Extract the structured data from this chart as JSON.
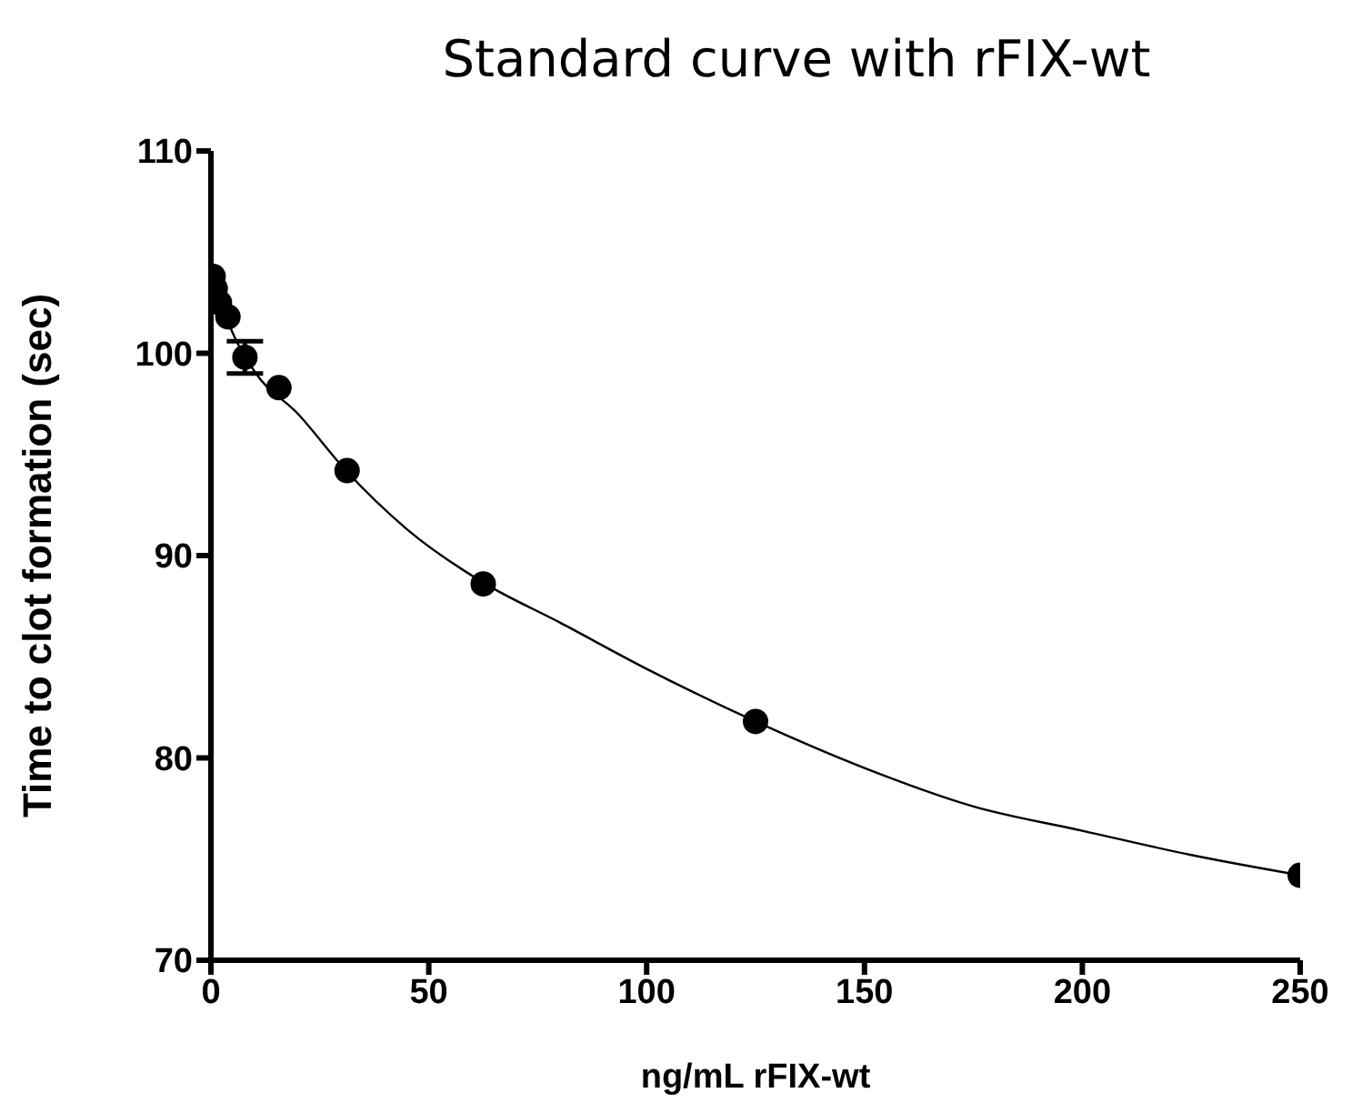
{
  "chart_data": {
    "type": "scatter",
    "title": "Standard curve with rFIX-wt",
    "xlabel": "ng/mL rFIX-wt",
    "ylabel": "Time to clot formation (sec)",
    "xlim": [
      0,
      250
    ],
    "xticks": [
      0,
      50,
      100,
      150,
      200,
      250
    ],
    "ylim": [
      70,
      110
    ],
    "yticks": [
      70,
      80,
      90,
      100,
      110
    ],
    "marker": "circle",
    "grid": false,
    "legend": false,
    "series": [
      {
        "color": "#000000",
        "x": [
          0.49,
          0.98,
          1.95,
          3.9,
          7.8,
          15.6,
          31.25,
          62.5,
          125,
          250
        ],
        "values": [
          103.8,
          103.2,
          102.5,
          101.8,
          99.8,
          98.3,
          94.2,
          88.6,
          81.8,
          74.2
        ],
        "errors": [
          null,
          null,
          null,
          null,
          0.8,
          null,
          null,
          null,
          null,
          null
        ]
      },
      {
        "type": "line",
        "color": "#000000",
        "marker": "none",
        "x": [
          0,
          5,
          10,
          20,
          31,
          45,
          63,
          80,
          100,
          125,
          150,
          175,
          200,
          225,
          250
        ],
        "values": [
          104.2,
          101,
          99.1,
          97,
          94.2,
          91.3,
          88.6,
          86.7,
          84.4,
          81.8,
          79.5,
          77.6,
          76.4,
          75.2,
          74.2
        ]
      }
    ]
  }
}
